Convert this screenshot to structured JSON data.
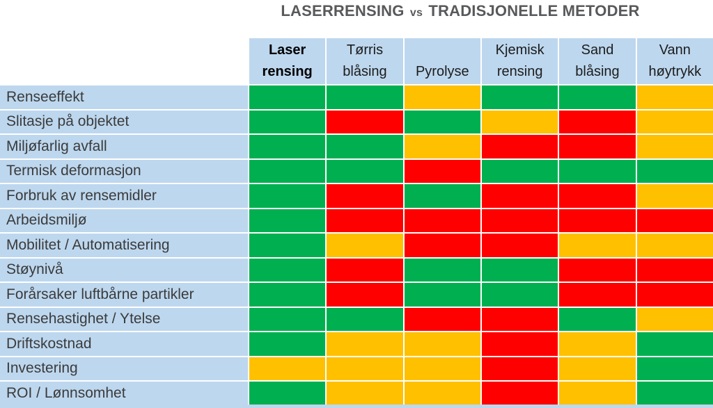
{
  "title": {
    "main1": "LASERRENSING",
    "vs": "vs",
    "main2": "TRADISJONELLE METODER"
  },
  "colors": {
    "green": "#00B050",
    "yellow": "#FFC000",
    "red": "#FF0000",
    "header_bg": "#BDD7EE",
    "label_bg": "#BDD7EE",
    "title_text": "#58595B"
  },
  "header_lines": [
    [
      "Laser",
      "rensing"
    ],
    [
      "Tørris",
      "blåsing"
    ],
    [
      "",
      "Pyrolyse"
    ],
    [
      "Kjemisk",
      "rensing"
    ],
    [
      "Sand",
      "blåsing"
    ],
    [
      "Vann",
      "høytrykk"
    ]
  ],
  "chart_data": {
    "type": "heatmap",
    "title": "LASERRENSING vs TRADISJONELLE METODER",
    "columns": [
      "Laser rensing",
      "Tørris blåsing",
      "Pyrolyse",
      "Kjemisk rensing",
      "Sand blåsing",
      "Vann høytrykk"
    ],
    "rows": [
      "Renseeffekt",
      "Slitasje på objektet",
      "Miljøfarlig avfall",
      "Termisk deformasjon",
      "Forbruk av rensemidler",
      "Arbeidsmiljø",
      "Mobilitet / Automatisering",
      "Støynivå",
      "Forårsaker luftbårne partikler",
      "Rensehastighet / Ytelse",
      "Driftskostnad",
      "Investering",
      "ROI / Lønnsomhet"
    ],
    "values": [
      [
        "green",
        "green",
        "yellow",
        "green",
        "green",
        "yellow"
      ],
      [
        "green",
        "red",
        "green",
        "yellow",
        "red",
        "yellow"
      ],
      [
        "green",
        "green",
        "yellow",
        "red",
        "red",
        "yellow"
      ],
      [
        "green",
        "green",
        "red",
        "green",
        "green",
        "green"
      ],
      [
        "green",
        "red",
        "green",
        "red",
        "red",
        "yellow"
      ],
      [
        "green",
        "red",
        "red",
        "red",
        "red",
        "red"
      ],
      [
        "green",
        "yellow",
        "red",
        "red",
        "yellow",
        "yellow"
      ],
      [
        "green",
        "red",
        "green",
        "green",
        "red",
        "red"
      ],
      [
        "green",
        "red",
        "green",
        "green",
        "red",
        "red"
      ],
      [
        "green",
        "green",
        "red",
        "red",
        "green",
        "yellow"
      ],
      [
        "green",
        "yellow",
        "yellow",
        "red",
        "yellow",
        "green"
      ],
      [
        "yellow",
        "yellow",
        "yellow",
        "red",
        "yellow",
        "green"
      ],
      [
        "green",
        "yellow",
        "yellow",
        "red",
        "yellow",
        "green"
      ]
    ],
    "color_scale": {
      "green": "#00B050",
      "yellow": "#FFC000",
      "red": "#FF0000"
    },
    "legend_position": "none",
    "grid": true
  }
}
